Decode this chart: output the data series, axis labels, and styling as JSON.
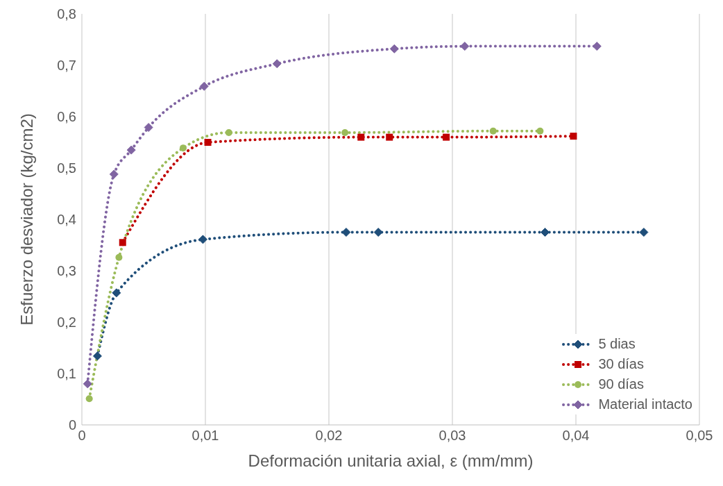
{
  "chart_data": {
    "type": "line",
    "xlabel": "Deformación unitaria axial, ε (mm/mm)",
    "ylabel": "Esfuerzo desviador (kg/cm2)",
    "xlim": [
      0,
      0.05
    ],
    "xticks": [
      0,
      {
        "value": 0.01,
        "label": "0,01"
      },
      {
        "value": 0.02,
        "label": "0,02"
      },
      {
        "value": 0.03,
        "label": "0,03"
      },
      {
        "value": 0.04,
        "label": "0,04"
      },
      {
        "value": 0.05,
        "label": "0,05"
      }
    ],
    "ylim": [
      0,
      0.8
    ],
    "yticks": [
      0,
      {
        "value": 0.1,
        "label": "0,1"
      },
      {
        "value": 0.2,
        "label": "0,2"
      },
      {
        "value": 0.3,
        "label": "0,3"
      },
      {
        "value": 0.4,
        "label": "0,4"
      },
      {
        "value": 0.5,
        "label": "0,5"
      },
      {
        "value": 0.6,
        "label": "0,6"
      },
      {
        "value": 0.7,
        "label": "0,7"
      },
      {
        "value": 0.8,
        "label": "0,8"
      }
    ],
    "grid": "x",
    "legend": "bottom right",
    "line_style": "dotted",
    "series": [
      {
        "name": "5 dias",
        "color": "#1f4e79",
        "marker": "diamond",
        "x": [
          0.00126,
          0.0028,
          0.0098,
          0.0214,
          0.024,
          0.0375,
          0.0455
        ],
        "values": [
          0.134,
          0.257,
          0.361,
          0.375,
          0.375,
          0.375,
          0.375
        ]
      },
      {
        "name": "30 días",
        "color": "#c00000",
        "marker": "square",
        "x": [
          0.0033,
          0.0102,
          0.0226,
          0.0249,
          0.0295,
          0.0398
        ],
        "values": [
          0.355,
          0.55,
          0.56,
          0.56,
          0.56,
          0.562
        ]
      },
      {
        "name": "90 días",
        "color": "#9bbb59",
        "marker": "circle",
        "x": [
          0.0006,
          0.003,
          0.0082,
          0.0119,
          0.0213,
          0.0333,
          0.0371
        ],
        "values": [
          0.051,
          0.326,
          0.539,
          0.569,
          0.569,
          0.572,
          0.572
        ]
      },
      {
        "name": "Material intacto",
        "color": "#8064a2",
        "marker": "diamond",
        "x": [
          0.00046,
          0.0026,
          0.004,
          0.0054,
          0.0099,
          0.0158,
          0.0253,
          0.031,
          0.0417
        ],
        "values": [
          0.08,
          0.488,
          0.535,
          0.579,
          0.659,
          0.703,
          0.732,
          0.737,
          0.737
        ]
      }
    ]
  }
}
